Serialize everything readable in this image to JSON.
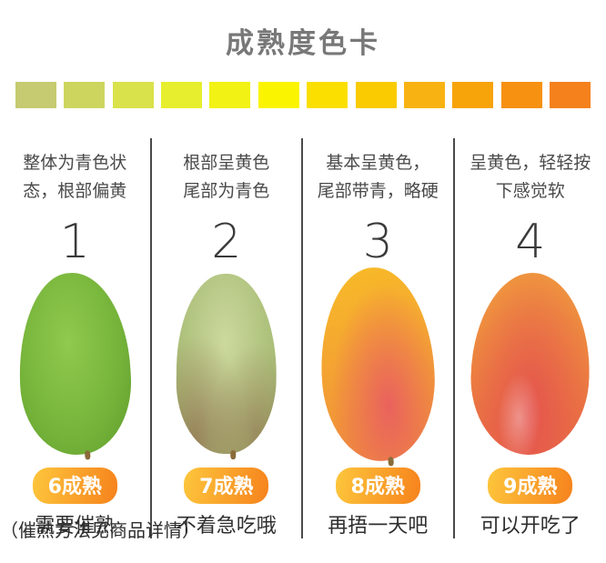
{
  "title": "成熟度色卡",
  "color_scale": [
    "#c6ca70",
    "#cdd55e",
    "#d9e24a",
    "#e7ee2d",
    "#f2f214",
    "#fbf400",
    "#fbdf00",
    "#f9cb00",
    "#f8b313",
    "#f7a30a",
    "#f69111",
    "#f5811d"
  ],
  "colors": {
    "title_text": "#787878",
    "desc_text": "#4a4a4a",
    "number_text": "#3a3a3a",
    "advice_text": "#2e2e2e",
    "divider": "#4a4a4a",
    "badge_text": "#ffffff",
    "badge_from": "#fdc63c",
    "badge_to": "#f6821c"
  },
  "columns": [
    {
      "number": "1",
      "desc_line1": "整体为青色状",
      "desc_line2": "态，根部偏黄",
      "badge": "6成熟",
      "advice": "需要催熟",
      "mango": "green-unripe-mango",
      "mango_colors": [
        "#90ca4e",
        "#74b239",
        "#5f9e2e"
      ]
    },
    {
      "number": "2",
      "desc_line1": "根部呈黄色",
      "desc_line2": "尾部为青色",
      "badge": "7成熟",
      "advice": "不着急吃哦",
      "mango": "pale-green-mango",
      "mango_colors": [
        "#ccd99e",
        "#a9bd76",
        "#8fa05c"
      ]
    },
    {
      "number": "3",
      "desc_line1": "基本呈黄色，",
      "desc_line2": "尾部带青，略硬",
      "badge": "8成熟",
      "advice": "再捂一天吧",
      "mango": "yellow-red-mango",
      "mango_colors": [
        "#f8bb28",
        "#f0903a",
        "#e9625e"
      ]
    },
    {
      "number": "4",
      "desc_line1": "呈黄色，轻轻按",
      "desc_line2": "下感觉软",
      "badge": "9成熟",
      "advice": "可以开吃了",
      "mango": "red-ripe-mango",
      "mango_colors": [
        "#f09a3e",
        "#ea7342",
        "#e4544e"
      ]
    }
  ],
  "footnote": "（催熟方法见商品详情）"
}
